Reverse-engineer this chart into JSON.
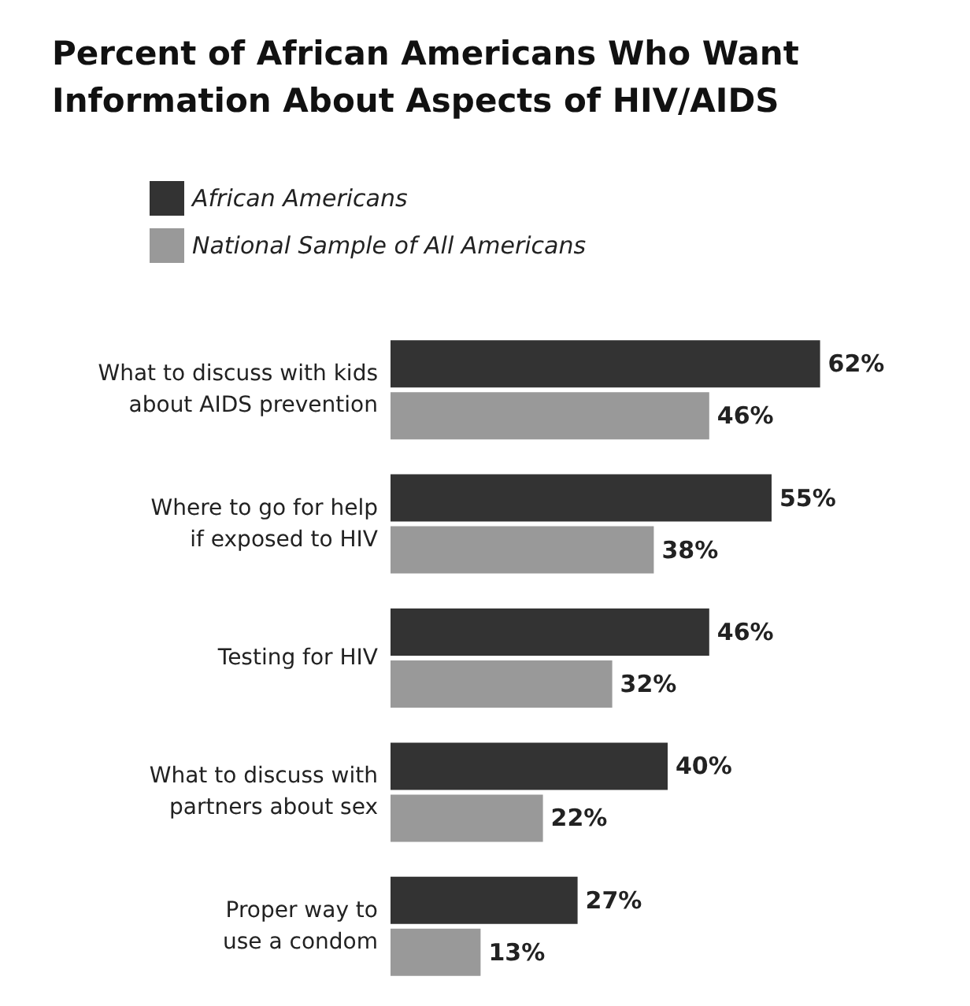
{
  "chart_data": {
    "type": "bar",
    "orientation": "horizontal",
    "title": "Percent of African Americans Who Want\nInformation About Aspects of HIV/AIDS",
    "categories": [
      "What to discuss with kids\nabout AIDS prevention",
      "Where to go for help\nif exposed to HIV",
      "Testing for HIV",
      "What to discuss with\npartners about sex",
      "Proper way to\nuse a condom"
    ],
    "series": [
      {
        "name": "African Americans",
        "color": "#333333",
        "values": [
          62,
          55,
          46,
          40,
          27
        ],
        "value_labels": [
          "62%",
          "55%",
          "46%",
          "40%",
          "27%"
        ]
      },
      {
        "name": "National Sample of All Americans",
        "color": "#999999",
        "values": [
          46,
          38,
          32,
          22,
          13
        ],
        "value_labels": [
          "46%",
          "38%",
          "32%",
          "22%",
          "13%"
        ]
      }
    ],
    "legend": "top left"
  }
}
